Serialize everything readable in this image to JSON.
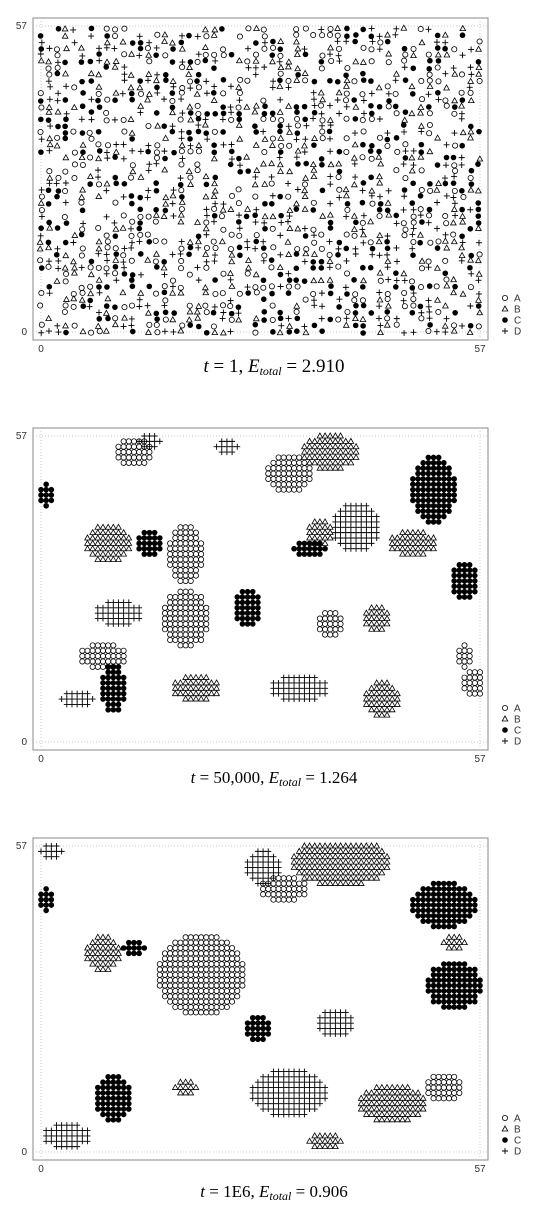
{
  "chart_data": [
    {
      "type": "scatter",
      "panel_caption": {
        "t_label": "t",
        "t_value": "1",
        "e_label": "E",
        "e_sub": "total",
        "e_value": "2.910"
      },
      "xlim": [
        0,
        57
      ],
      "ylim": [
        0,
        57
      ],
      "x_ticks": [
        "0",
        "57"
      ],
      "y_ticks": [
        "0",
        "57"
      ],
      "grid": true,
      "legend_position": "right-bottom",
      "mode": "random",
      "seed": 7,
      "density": 0.55
    },
    {
      "type": "scatter",
      "panel_caption": {
        "t_label": "t",
        "t_value": "50,000",
        "e_label": "E",
        "e_sub": "total",
        "e_value": "1.264"
      },
      "xlim": [
        0,
        57
      ],
      "ylim": [
        0,
        57
      ],
      "x_ticks": [
        "0",
        "57"
      ],
      "y_ticks": [
        "0",
        "57"
      ],
      "grid": true,
      "legend_position": "right-bottom",
      "mode": "clusters",
      "clusters": [
        {
          "s": "A",
          "cx": 18,
          "cy": 54,
          "rx": 3,
          "ry": 2
        },
        {
          "s": "D",
          "cx": 21,
          "cy": 56,
          "rx": 2,
          "ry": 1
        },
        {
          "s": "D",
          "cx": 36,
          "cy": 55,
          "rx": 2,
          "ry": 1
        },
        {
          "s": "A",
          "cx": 48,
          "cy": 50,
          "rx": 4,
          "ry": 3
        },
        {
          "s": "B",
          "cx": 56,
          "cy": 54,
          "rx": 5,
          "ry": 3
        },
        {
          "s": "C",
          "cx": 76,
          "cy": 47,
          "rx": 4,
          "ry": 6
        },
        {
          "s": "C",
          "cx": 1,
          "cy": 46,
          "rx": 1,
          "ry": 2
        },
        {
          "s": "D",
          "cx": 61,
          "cy": 40,
          "rx": 4,
          "ry": 4
        },
        {
          "s": "B",
          "cx": 13,
          "cy": 37,
          "rx": 4,
          "ry": 3
        },
        {
          "s": "C",
          "cx": 21,
          "cy": 37,
          "rx": 2,
          "ry": 2
        },
        {
          "s": "A",
          "cx": 28,
          "cy": 35,
          "rx": 3,
          "ry": 5
        },
        {
          "s": "B",
          "cx": 54,
          "cy": 39,
          "rx": 2,
          "ry": 2
        },
        {
          "s": "C",
          "cx": 52,
          "cy": 36,
          "rx": 3,
          "ry": 1
        },
        {
          "s": "B",
          "cx": 72,
          "cy": 37,
          "rx": 4,
          "ry": 2
        },
        {
          "s": "C",
          "cx": 82,
          "cy": 30,
          "rx": 2,
          "ry": 3
        },
        {
          "s": "D",
          "cx": 15,
          "cy": 24,
          "rx": 4,
          "ry": 2
        },
        {
          "s": "A",
          "cx": 28,
          "cy": 23,
          "rx": 4,
          "ry": 5
        },
        {
          "s": "C",
          "cx": 40,
          "cy": 25,
          "rx": 2,
          "ry": 3
        },
        {
          "s": "A",
          "cx": 56,
          "cy": 22,
          "rx": 2,
          "ry": 2
        },
        {
          "s": "B",
          "cx": 65,
          "cy": 23,
          "rx": 2,
          "ry": 2
        },
        {
          "s": "A",
          "cx": 12,
          "cy": 16,
          "rx": 4,
          "ry": 2
        },
        {
          "s": "C",
          "cx": 14,
          "cy": 10,
          "rx": 2,
          "ry": 4
        },
        {
          "s": "B",
          "cx": 30,
          "cy": 10,
          "rx": 4,
          "ry": 2
        },
        {
          "s": "D",
          "cx": 50,
          "cy": 10,
          "rx": 5,
          "ry": 2
        },
        {
          "s": "B",
          "cx": 66,
          "cy": 8,
          "rx": 3,
          "ry": 3
        },
        {
          "s": "A",
          "cx": 84,
          "cy": 11,
          "rx": 2,
          "ry": 2
        },
        {
          "s": "D",
          "cx": 7,
          "cy": 8,
          "rx": 3,
          "ry": 1
        },
        {
          "s": "A",
          "cx": 82,
          "cy": 16,
          "rx": 1,
          "ry": 2
        }
      ]
    },
    {
      "type": "scatter",
      "panel_caption": {
        "t_label": "t",
        "t_value": "1E6",
        "e_label": "E",
        "e_sub": "total",
        "e_value": "0.906"
      },
      "xlim": [
        0,
        57
      ],
      "ylim": [
        0,
        57
      ],
      "x_ticks": [
        "0",
        "57"
      ],
      "y_ticks": [
        "0",
        "57"
      ],
      "grid": true,
      "legend_position": "right-bottom",
      "mode": "clusters",
      "clusters": [
        {
          "s": "D",
          "cx": 43,
          "cy": 53,
          "rx": 3,
          "ry": 3
        },
        {
          "s": "A",
          "cx": 47,
          "cy": 49,
          "rx": 4,
          "ry": 2
        },
        {
          "s": "B",
          "cx": 58,
          "cy": 54,
          "rx": 9,
          "ry": 4
        },
        {
          "s": "C",
          "cx": 78,
          "cy": 46,
          "rx": 6,
          "ry": 4
        },
        {
          "s": "C",
          "cx": 1,
          "cy": 47,
          "rx": 1,
          "ry": 2
        },
        {
          "s": "B",
          "cx": 12,
          "cy": 37,
          "rx": 3,
          "ry": 3
        },
        {
          "s": "C",
          "cx": 18,
          "cy": 38,
          "rx": 2,
          "ry": 1
        },
        {
          "s": "A",
          "cx": 31,
          "cy": 33,
          "rx": 8,
          "ry": 7
        },
        {
          "s": "C",
          "cx": 80,
          "cy": 31,
          "rx": 5,
          "ry": 4
        },
        {
          "s": "B",
          "cx": 80,
          "cy": 39,
          "rx": 2,
          "ry": 1
        },
        {
          "s": "C",
          "cx": 42,
          "cy": 23,
          "rx": 2,
          "ry": 2
        },
        {
          "s": "D",
          "cx": 57,
          "cy": 24,
          "rx": 3,
          "ry": 2
        },
        {
          "s": "D",
          "cx": 48,
          "cy": 11,
          "rx": 7,
          "ry": 4
        },
        {
          "s": "B",
          "cx": 68,
          "cy": 9,
          "rx": 6,
          "ry": 3
        },
        {
          "s": "A",
          "cx": 78,
          "cy": 12,
          "rx": 3,
          "ry": 2
        },
        {
          "s": "C",
          "cx": 14,
          "cy": 10,
          "rx": 3,
          "ry": 4
        },
        {
          "s": "D",
          "cx": 5,
          "cy": 3,
          "rx": 4,
          "ry": 2
        },
        {
          "s": "B",
          "cx": 28,
          "cy": 12,
          "rx": 2,
          "ry": 1
        },
        {
          "s": "B",
          "cx": 55,
          "cy": 2,
          "rx": 3,
          "ry": 1
        },
        {
          "s": "D",
          "cx": 2,
          "cy": 56,
          "rx": 2,
          "ry": 1
        }
      ]
    }
  ],
  "legend": [
    {
      "label": "A",
      "marker": "open-circle"
    },
    {
      "label": "B",
      "marker": "open-triangle"
    },
    {
      "label": "C",
      "marker": "filled-circle"
    },
    {
      "label": "D",
      "marker": "plus"
    }
  ],
  "colors": {
    "marker": "#000000",
    "grid": "#c8c8c8",
    "frame": "#888888"
  }
}
